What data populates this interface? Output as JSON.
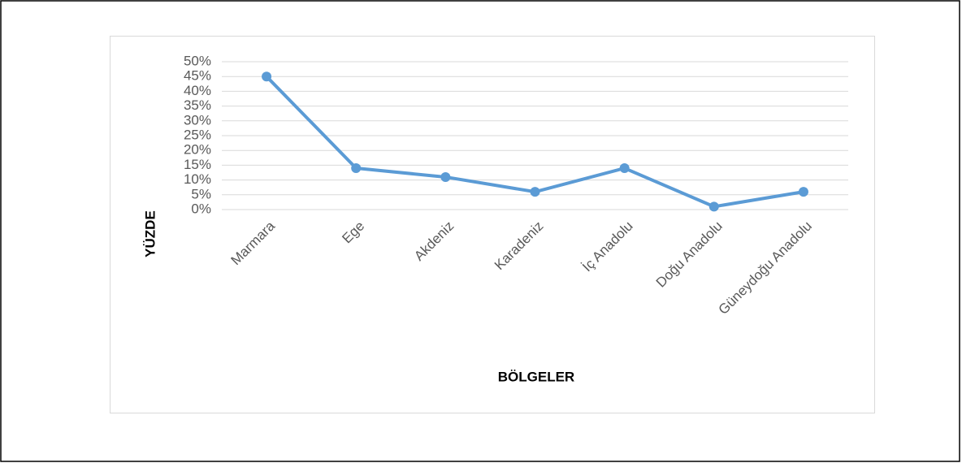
{
  "chart_data": {
    "type": "line",
    "x_label": "BÖLGELER",
    "y_label": "YÜZDE",
    "categories": [
      "Marmara",
      "Ege",
      "Akdeniz",
      "Karadeniz",
      "İç Anadolu",
      "Doğu Anadolu",
      "Güneydoğu Anadolu"
    ],
    "series": [
      {
        "color": "#5b9bd5",
        "values": [
          45,
          14,
          11,
          6,
          14,
          1,
          6
        ]
      }
    ],
    "ylim": [
      0,
      50
    ],
    "yticks": [
      {
        "value": 0,
        "label": "0%"
      },
      {
        "value": 5,
        "label": "5%"
      },
      {
        "value": 10,
        "label": "10%"
      },
      {
        "value": 15,
        "label": "15%"
      },
      {
        "value": 20,
        "label": "20%"
      },
      {
        "value": 25,
        "label": "25%"
      },
      {
        "value": 30,
        "label": "30%"
      },
      {
        "value": 35,
        "label": "35%"
      },
      {
        "value": 40,
        "label": "40%"
      },
      {
        "value": 45,
        "label": "45%"
      },
      {
        "value": 50,
        "label": "50%"
      }
    ],
    "grid": true
  }
}
